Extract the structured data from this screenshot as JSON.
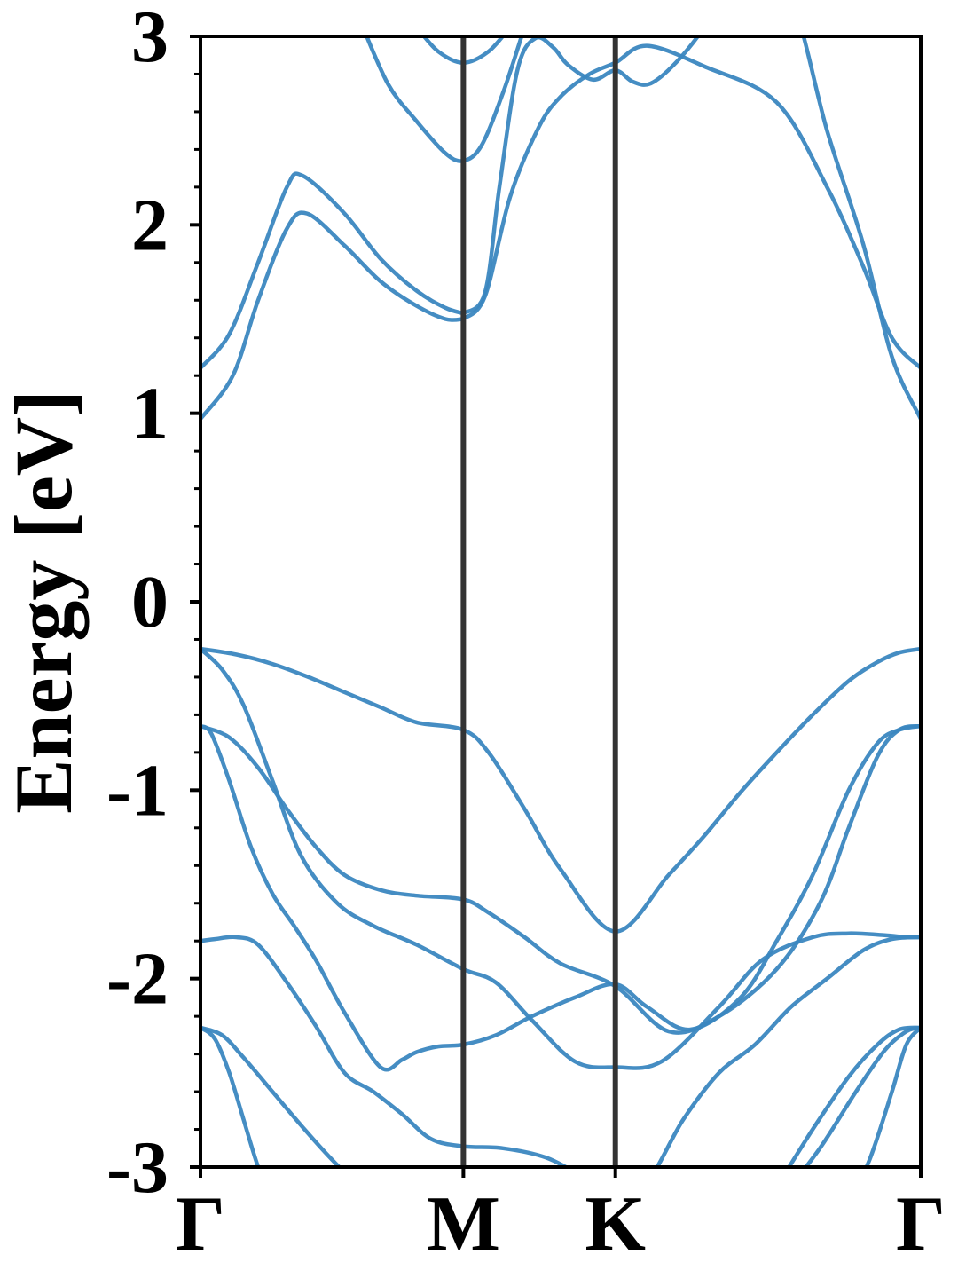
{
  "chart_data": {
    "type": "line",
    "title": "",
    "xlabel": "",
    "ylabel": "Energy [eV]",
    "ylim": [
      -3,
      3
    ],
    "xlim": [
      0,
      1
    ],
    "grid": false,
    "line_color": "#3b87c0",
    "kpath_line_color": "#333333",
    "kpoints": [
      {
        "label": "Γ",
        "x": 0.0
      },
      {
        "label": "M",
        "x": 0.365
      },
      {
        "label": "K",
        "x": 0.576
      },
      {
        "label": "Γ",
        "x": 1.0
      }
    ],
    "yticks": [
      {
        "value": 3,
        "label": "3"
      },
      {
        "value": 2,
        "label": "2"
      },
      {
        "value": 1,
        "label": "1"
      },
      {
        "value": 0,
        "label": "0"
      },
      {
        "value": -1,
        "label": "-1"
      },
      {
        "value": -2,
        "label": "-2"
      },
      {
        "value": -3,
        "label": "-3"
      }
    ],
    "minor_ytick_step": 0.2,
    "series": [
      {
        "x": [
          0.0,
          0.045,
          0.08,
          0.12,
          0.148,
          0.2,
          0.25,
          0.3,
          0.34,
          0.365
        ],
        "y": [
          0.97,
          1.2,
          1.6,
          1.98,
          2.06,
          1.89,
          1.7,
          1.57,
          1.5,
          1.5
        ]
      },
      {
        "x": [
          0.0,
          0.04,
          0.08,
          0.12,
          0.142,
          0.2,
          0.25,
          0.3,
          0.34,
          0.365
        ],
        "y": [
          1.24,
          1.42,
          1.8,
          2.2,
          2.26,
          2.06,
          1.82,
          1.65,
          1.56,
          1.53
        ]
      },
      {
        "x": [
          0.365,
          0.395,
          0.43,
          0.47,
          0.5,
          0.54,
          0.576,
          0.62,
          0.7,
          0.8,
          0.87,
          0.92,
          0.96,
          1.0
        ],
        "y": [
          1.5,
          1.62,
          2.15,
          2.52,
          2.68,
          2.8,
          2.86,
          2.95,
          2.84,
          2.65,
          2.2,
          1.78,
          1.4,
          1.24
        ]
      },
      {
        "x": [
          0.365,
          0.395,
          0.415,
          0.44,
          0.465,
          0.49,
          0.51,
          0.545,
          0.576,
          0.6,
          0.625,
          0.66,
          0.7,
          0.76,
          0.82,
          0.87,
          0.92,
          0.96,
          1.0
        ],
        "y": [
          1.53,
          1.64,
          2.2,
          2.82,
          2.99,
          2.94,
          2.85,
          2.77,
          2.82,
          2.76,
          2.75,
          2.86,
          3.05,
          3.4,
          3.2,
          2.5,
          1.9,
          1.3,
          0.97
        ]
      },
      {
        "x": [
          0.22,
          0.26,
          0.3,
          0.34,
          0.365,
          0.39,
          0.42,
          0.45
        ],
        "y": [
          3.1,
          2.75,
          2.55,
          2.38,
          2.34,
          2.42,
          2.7,
          3.05
        ]
      },
      {
        "x": [
          0.3,
          0.33,
          0.365,
          0.4,
          0.43
        ],
        "y": [
          3.05,
          2.92,
          2.86,
          2.92,
          3.05
        ]
      },
      {
        "x": [
          0.0,
          0.05,
          0.1,
          0.15,
          0.2,
          0.25,
          0.3,
          0.365,
          0.4,
          0.45,
          0.5,
          0.576,
          0.65,
          0.7,
          0.75,
          0.8,
          0.85,
          0.9,
          0.94,
          0.97,
          1.0
        ],
        "y": [
          -0.25,
          -0.28,
          -0.33,
          -0.4,
          -0.48,
          -0.56,
          -0.64,
          -0.68,
          -0.8,
          -1.1,
          -1.42,
          -1.75,
          -1.45,
          -1.24,
          -1.01,
          -0.8,
          -0.6,
          -0.42,
          -0.32,
          -0.27,
          -0.25
        ]
      },
      {
        "x": [
          0.0,
          0.03,
          0.06,
          0.1,
          0.14,
          0.19,
          0.24,
          0.3,
          0.365,
          0.41,
          0.46,
          0.52,
          0.576,
          0.64,
          0.72,
          0.78,
          0.85,
          0.9,
          0.95,
          0.98,
          1.0
        ],
        "y": [
          -0.25,
          -0.36,
          -0.55,
          -0.95,
          -1.35,
          -1.6,
          -1.72,
          -1.82,
          -1.95,
          -2.02,
          -2.22,
          -2.44,
          -2.47,
          -2.44,
          -2.15,
          -1.9,
          -1.78,
          -1.76,
          -1.77,
          -1.78,
          -1.78
        ]
      },
      {
        "x": [
          0.0,
          0.04,
          0.08,
          0.12,
          0.16,
          0.2,
          0.25,
          0.3,
          0.365,
          0.4,
          0.45,
          0.5,
          0.576,
          0.65,
          0.72,
          0.8,
          0.86,
          0.9,
          0.94,
          0.97,
          1.0
        ],
        "y": [
          -0.66,
          -0.72,
          -0.88,
          -1.1,
          -1.3,
          -1.45,
          -1.53,
          -1.56,
          -1.58,
          -1.65,
          -1.78,
          -1.92,
          -2.04,
          -2.28,
          -2.2,
          -1.95,
          -1.6,
          -1.2,
          -0.82,
          -0.68,
          -0.66
        ]
      },
      {
        "x": [
          0.0,
          0.015,
          0.04,
          0.07,
          0.1,
          0.13,
          0.16,
          0.2,
          0.25,
          0.28,
          0.3,
          0.33,
          0.365,
          0.41,
          0.46,
          0.52,
          0.576,
          0.62,
          0.68,
          0.75,
          0.8,
          0.85,
          0.9,
          0.94,
          0.97,
          1.0
        ],
        "y": [
          -0.66,
          -0.7,
          -0.95,
          -1.3,
          -1.55,
          -1.72,
          -1.9,
          -2.18,
          -2.47,
          -2.43,
          -2.39,
          -2.36,
          -2.35,
          -2.3,
          -2.2,
          -2.1,
          -2.03,
          -2.15,
          -2.27,
          -2.1,
          -1.8,
          -1.45,
          -1.0,
          -0.75,
          -0.68,
          -0.66
        ]
      },
      {
        "x": [
          0.0,
          0.02,
          0.05,
          0.08,
          0.12,
          0.16,
          0.2,
          0.24,
          0.28,
          0.32,
          0.365,
          0.42,
          0.48,
          0.53,
          0.576,
          0.62,
          0.67,
          0.72,
          0.77,
          0.82,
          0.87,
          0.92,
          0.96,
          1.0
        ],
        "y": [
          -1.8,
          -1.79,
          -1.78,
          -1.82,
          -2.02,
          -2.25,
          -2.5,
          -2.6,
          -2.72,
          -2.85,
          -2.89,
          -2.9,
          -2.95,
          -3.05,
          -3.15,
          -3.08,
          -2.75,
          -2.5,
          -2.35,
          -2.15,
          -2.0,
          -1.85,
          -1.79,
          -1.78
        ]
      },
      {
        "x": [
          0.0,
          0.03,
          0.06,
          0.1,
          0.14,
          0.18,
          0.22,
          0.26
        ],
        "y": [
          -2.26,
          -2.3,
          -2.42,
          -2.6,
          -2.78,
          -2.95,
          -3.1,
          -3.2
        ]
      },
      {
        "x": [
          0.0,
          0.02,
          0.04,
          0.06,
          0.08,
          0.1
        ],
        "y": [
          -2.26,
          -2.32,
          -2.5,
          -2.75,
          -3.0,
          -3.2
        ]
      },
      {
        "x": [
          0.8,
          0.86,
          0.91,
          0.95,
          0.98,
          1.0
        ],
        "y": [
          -3.2,
          -2.9,
          -2.6,
          -2.38,
          -2.28,
          -2.26
        ]
      },
      {
        "x": [
          0.75,
          0.8,
          0.85,
          0.9,
          0.94,
          0.97,
          1.0
        ],
        "y": [
          -3.35,
          -3.1,
          -2.8,
          -2.52,
          -2.35,
          -2.27,
          -2.26
        ]
      },
      {
        "x": [
          0.9,
          0.93,
          0.96,
          0.98,
          1.0
        ],
        "y": [
          -3.2,
          -2.95,
          -2.6,
          -2.35,
          -2.26
        ]
      }
    ]
  }
}
